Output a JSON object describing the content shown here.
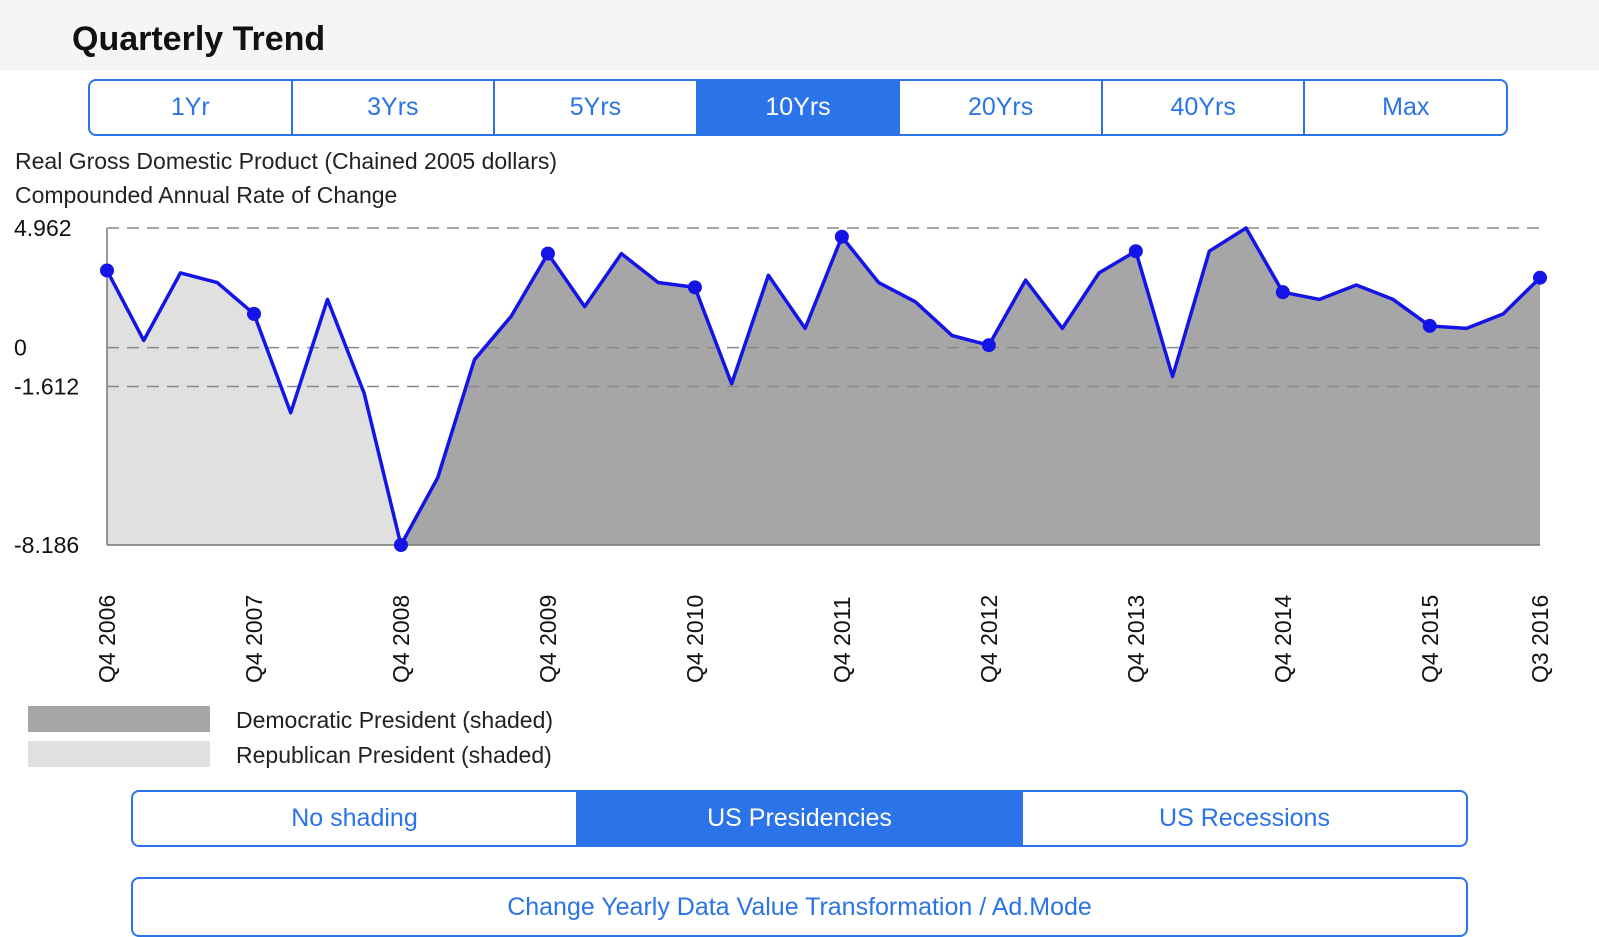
{
  "header": {
    "title": "Quarterly Trend"
  },
  "range_selector": {
    "options": [
      "1Yr",
      "3Yrs",
      "5Yrs",
      "10Yrs",
      "20Yrs",
      "40Yrs",
      "Max"
    ],
    "selected": "10Yrs"
  },
  "chart_subtitle": {
    "line1": "Real Gross Domestic Product (Chained 2005 dollars)",
    "line2": "Compounded Annual Rate of Change"
  },
  "colors": {
    "accent": "#2a73e8",
    "line": "#1414e6",
    "democratic_shade": "#a6a6a6",
    "republican_shade": "#e0e0e0"
  },
  "chart_data": {
    "type": "area",
    "title": "",
    "xlabel": "",
    "ylabel": "",
    "ylim": [
      -8.186,
      4.962
    ],
    "y_tick_labels": [
      "4.962",
      "0",
      "-1.612",
      "-8.186"
    ],
    "y_ticks": [
      4.962,
      0,
      -1.612,
      -8.186
    ],
    "grid": "dashed at y ticks",
    "x_tick_labels": [
      "Q4 2006",
      "Q4 2007",
      "Q4 2008",
      "Q4 2009",
      "Q4 2010",
      "Q4 2011",
      "Q4 2012",
      "Q4 2013",
      "Q4 2014",
      "Q4 2015",
      "Q3 2016"
    ],
    "x_tick_index": [
      0,
      4,
      8,
      12,
      16,
      20,
      24,
      28,
      32,
      36,
      39
    ],
    "x": [
      "Q4 2006",
      "Q1 2007",
      "Q2 2007",
      "Q3 2007",
      "Q4 2007",
      "Q1 2008",
      "Q2 2008",
      "Q3 2008",
      "Q4 2008",
      "Q1 2009",
      "Q2 2009",
      "Q3 2009",
      "Q4 2009",
      "Q1 2010",
      "Q2 2010",
      "Q3 2010",
      "Q4 2010",
      "Q1 2011",
      "Q2 2011",
      "Q3 2011",
      "Q4 2011",
      "Q1 2012",
      "Q2 2012",
      "Q3 2012",
      "Q4 2012",
      "Q1 2013",
      "Q2 2013",
      "Q3 2013",
      "Q4 2013",
      "Q1 2014",
      "Q2 2014",
      "Q3 2014",
      "Q4 2014",
      "Q1 2015",
      "Q2 2015",
      "Q3 2015",
      "Q4 2015",
      "Q1 2016",
      "Q2 2016",
      "Q3 2016"
    ],
    "series": [
      {
        "values": [
          3.2,
          0.3,
          3.1,
          2.7,
          1.4,
          -2.7,
          2.0,
          -1.9,
          -8.186,
          -5.4,
          -0.5,
          1.3,
          3.9,
          1.7,
          3.9,
          2.7,
          2.5,
          -1.5,
          3.0,
          0.8,
          4.6,
          2.7,
          1.9,
          0.5,
          0.1,
          2.8,
          0.8,
          3.1,
          4.0,
          -1.2,
          4.0,
          4.962,
          2.3,
          2.0,
          2.6,
          2.0,
          0.9,
          0.8,
          1.4,
          2.9
        ]
      }
    ],
    "markers_at_index": [
      0,
      4,
      8,
      12,
      16,
      20,
      24,
      28,
      32,
      36,
      39
    ],
    "shading": {
      "republican_until_index": 8,
      "democratic_from_index": 8
    }
  },
  "legend": {
    "democratic": "Democratic President (shaded)",
    "republican": "Republican President (shaded)"
  },
  "shading_selector": {
    "options": [
      "No shading",
      "US Presidencies",
      "US Recessions"
    ],
    "selected": "US Presidencies"
  },
  "bottom_button": {
    "label": "Change Yearly Data Value Transformation / Ad.Mode"
  }
}
